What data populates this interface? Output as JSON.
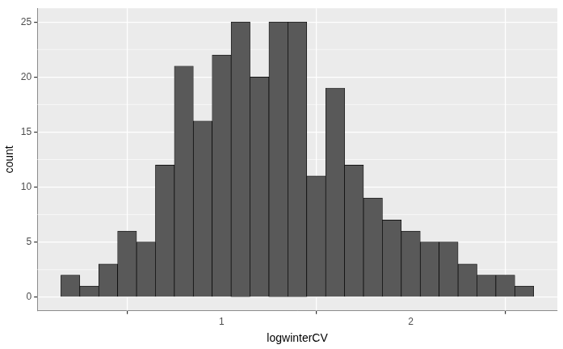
{
  "chart_data": {
    "type": "histogram",
    "x_label": "logwinterCV",
    "y_label": "count",
    "bins": [
      0.15,
      0.25,
      0.35,
      0.45,
      0.55,
      0.65,
      0.75,
      0.85,
      0.95,
      1.05,
      1.15,
      1.25,
      1.35,
      1.45,
      1.55,
      1.65,
      1.75,
      1.85,
      1.95,
      2.05,
      2.15,
      2.25,
      2.35,
      2.45,
      2.55,
      2.65
    ],
    "counts": [
      2,
      1,
      3,
      6,
      5,
      12,
      21,
      16,
      22,
      25,
      20,
      25,
      25,
      11,
      19,
      12,
      9,
      7,
      6,
      5,
      5,
      3,
      2,
      2,
      1
    ],
    "color": "#595959",
    "xlim": [
      0.025,
      2.775
    ],
    "ylim": [
      -1.25,
      26.25
    ],
    "xticks": [
      1,
      2
    ],
    "yticks": [
      0,
      5,
      10,
      15,
      20,
      25
    ],
    "grid": true
  }
}
